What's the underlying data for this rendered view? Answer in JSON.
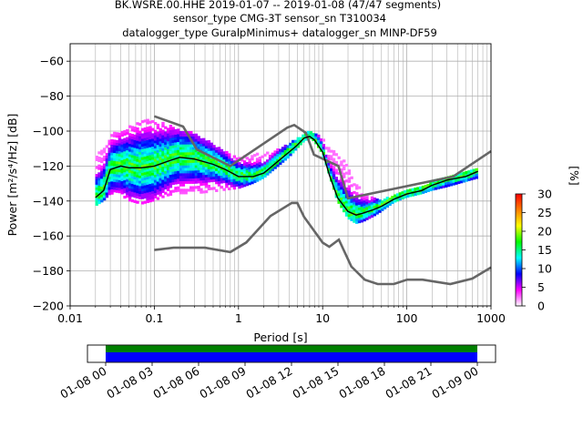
{
  "titles": [
    "BK.WSRE.00.HHE   2019-01-07 -- 2019-01-08  (47/47 segments)",
    "sensor_type CMG-3T sensor_sn T310034",
    "datalogger_type GuralpMinimus+ datalogger_sn MINP-DF59"
  ],
  "chart_data": [
    {
      "type": "heatmap",
      "xlabel": "Period [s]",
      "ylabel": "Power [m²/s⁴/Hz] [dB]",
      "x_scale": "log",
      "xlim": [
        0.01,
        1000
      ],
      "ylim": [
        -200,
        -50
      ],
      "x_ticks": [
        {
          "value": 0.01,
          "label": "0.01"
        },
        {
          "value": 0.1,
          "label": "0.1"
        },
        {
          "value": 1,
          "label": "1"
        },
        {
          "value": 10,
          "label": "10"
        },
        {
          "value": 100,
          "label": "100"
        },
        {
          "value": 1000,
          "label": "1000"
        }
      ],
      "y_ticks": [
        {
          "value": -60,
          "label": "−60"
        },
        {
          "value": -80,
          "label": "−80"
        },
        {
          "value": -100,
          "label": "−100"
        },
        {
          "value": -120,
          "label": "−120"
        },
        {
          "value": -140,
          "label": "−140"
        },
        {
          "value": -160,
          "label": "−160"
        },
        {
          "value": -180,
          "label": "−180"
        },
        {
          "value": -200,
          "label": "−200"
        }
      ],
      "grid": true,
      "colorbar": {
        "label": "[%]",
        "range": [
          0,
          30
        ],
        "ticks": [
          {
            "value": 0,
            "label": "0"
          },
          {
            "value": 5,
            "label": "5"
          },
          {
            "value": 10,
            "label": "10"
          },
          {
            "value": 15,
            "label": "15"
          },
          {
            "value": 20,
            "label": "20"
          },
          {
            "value": 25,
            "label": "25"
          },
          {
            "value": 30,
            "label": "30"
          }
        ],
        "colors": [
          "#ffffff",
          "#ff00ff",
          "#0000ff",
          "#00ffff",
          "#00ff00",
          "#ffff00",
          "#ff8000",
          "#ff0000"
        ]
      },
      "psd_band": {
        "periods": [
          0.02,
          0.025,
          0.03,
          0.04,
          0.05,
          0.07,
          0.1,
          0.15,
          0.2,
          0.3,
          0.5,
          0.7,
          1,
          1.5,
          2,
          3,
          4,
          5,
          6,
          7,
          8,
          10,
          12,
          15,
          20,
          25,
          30,
          40,
          50,
          70,
          100,
          150,
          200,
          300,
          500,
          700
        ],
        "low": [
          -143,
          -140,
          -136,
          -137,
          -140,
          -142,
          -140,
          -137,
          -136,
          -136,
          -135,
          -134,
          -133,
          -130,
          -127,
          -120,
          -115,
          -110,
          -106,
          -104,
          -106,
          -113,
          -125,
          -140,
          -150,
          -153,
          -152,
          -149,
          -146,
          -141,
          -138,
          -136,
          -134,
          -132,
          -129,
          -127
        ],
        "high": [
          -114,
          -110,
          -103,
          -100,
          -98,
          -95,
          -94,
          -97,
          -99,
          -102,
          -108,
          -112,
          -115,
          -114,
          -113,
          -111,
          -108,
          -105,
          -103,
          -101,
          -102,
          -105,
          -110,
          -114,
          -120,
          -130,
          -135,
          -138,
          -140,
          -138,
          -135,
          -133,
          -129,
          -127,
          -124,
          -121
        ]
      },
      "mean_curve": {
        "periods": [
          0.02,
          0.025,
          0.03,
          0.04,
          0.05,
          0.07,
          0.1,
          0.15,
          0.2,
          0.3,
          0.5,
          0.7,
          1,
          1.5,
          2,
          3,
          4,
          5,
          6,
          7,
          8,
          10,
          12,
          15,
          20,
          25,
          30,
          40,
          50,
          70,
          100,
          150,
          200,
          300,
          500,
          700
        ],
        "db": [
          -138,
          -134,
          -122,
          -120,
          -121,
          -121,
          -120,
          -117,
          -115,
          -116,
          -119,
          -122,
          -126,
          -126,
          -124,
          -117,
          -112,
          -108,
          -104,
          -103,
          -105,
          -112,
          -125,
          -138,
          -146,
          -148,
          -147,
          -145,
          -143,
          -139,
          -136,
          -134,
          -131,
          -128,
          -126,
          -123
        ]
      },
      "nhnm": {
        "periods": [
          0.1,
          0.22,
          0.32,
          0.8,
          3.8,
          4.6,
          6.3,
          7.9,
          15.4,
          20,
          354.8,
          1000
        ],
        "db": [
          -91.5,
          -97.4,
          -110.5,
          -120,
          -98,
          -96.5,
          -101,
          -113.5,
          -120,
          -138.5,
          -126,
          -111.5
        ]
      },
      "nlnm": {
        "periods": [
          0.1,
          0.17,
          0.4,
          0.8,
          1.24,
          2.4,
          4.3,
          5,
          6,
          10,
          12,
          15.6,
          21.9,
          31.6,
          45,
          70,
          101,
          154,
          328,
          600,
          1000
        ],
        "db": [
          -168,
          -166.7,
          -166.7,
          -169.2,
          -163.7,
          -148.6,
          -141.1,
          -141.1,
          -149,
          -163.8,
          -166.2,
          -162.1,
          -177.5,
          -185,
          -187.5,
          -187.5,
          -185,
          -185,
          -187.5,
          -184.4,
          -178
        ]
      }
    },
    {
      "type": "bar",
      "orientation": "horizontal-timeline",
      "x_tick_labels": [
        "01-08 00",
        "01-08 03",
        "01-08 06",
        "01-08 09",
        "01-08 12",
        "01-08 15",
        "01-08 18",
        "01-08 21",
        "01-09 00"
      ],
      "xlim": [
        "01-07 21",
        "01-09 01"
      ],
      "series": [
        {
          "color": "#008000",
          "start": "01-08 00",
          "end": "01-09 00"
        },
        {
          "color": "#0000ff",
          "start": "01-08 00",
          "end": "01-09 00"
        }
      ]
    }
  ]
}
